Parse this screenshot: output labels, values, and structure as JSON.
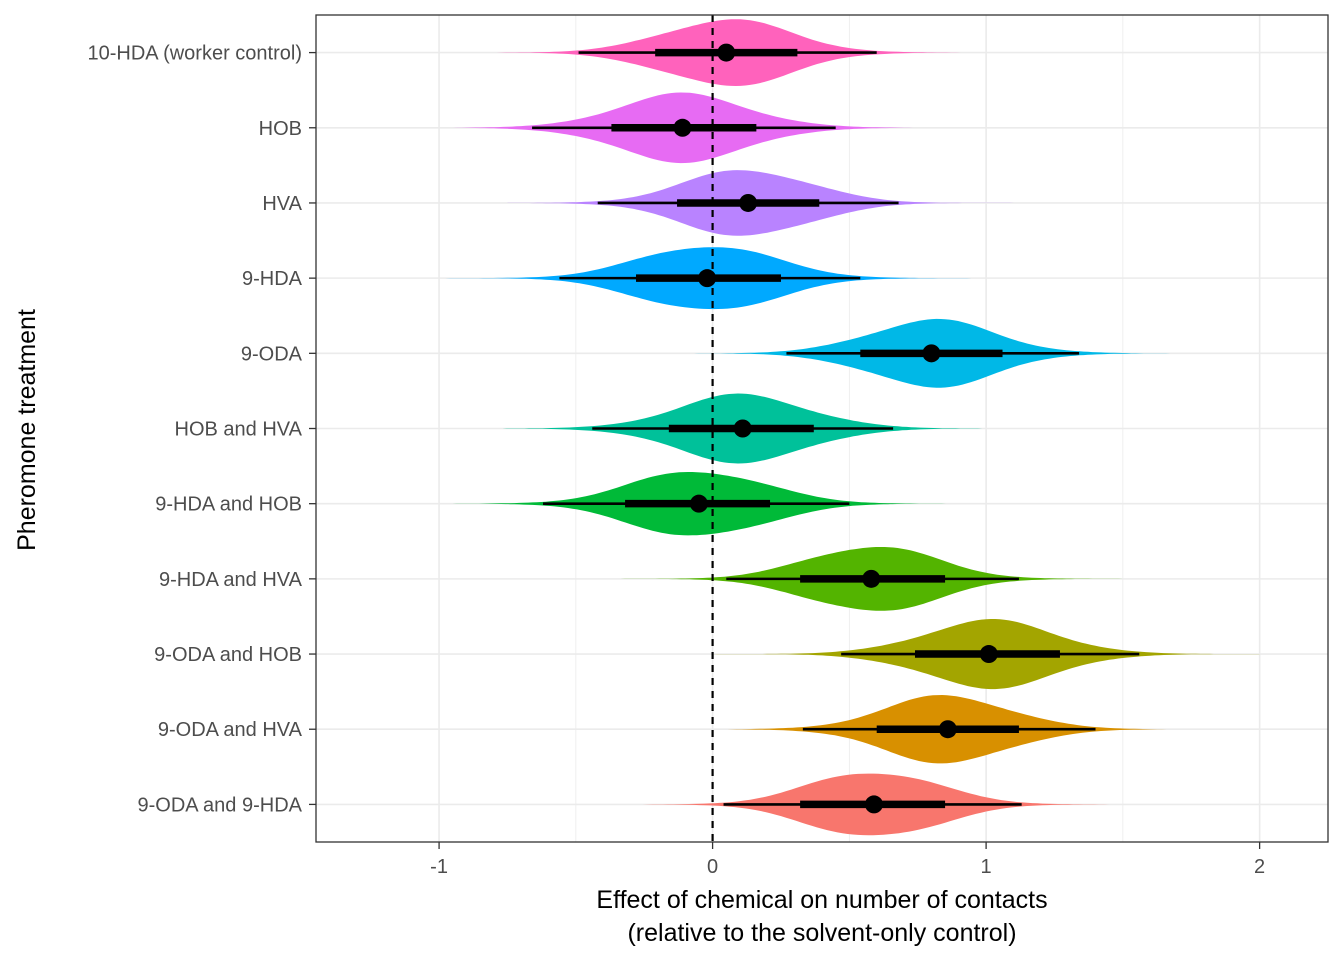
{
  "chart_data": {
    "type": "violin",
    "title": "",
    "xlabel_line1": "Effect of chemical on number of contacts",
    "xlabel_line2": "(relative to the solvent-only control)",
    "ylabel": "Pheromone treatment",
    "xlim": [
      -1.45,
      2.25
    ],
    "xticks": [
      -1,
      0,
      1,
      2
    ],
    "xtick_labels": [
      "-1",
      "0",
      "1",
      "2"
    ],
    "reference_line_x": 0,
    "grid": true,
    "legend": "none",
    "categories": [
      {
        "label": "10-HDA (worker control)",
        "median": 0.05,
        "inner": [
          -0.21,
          0.31
        ],
        "outer": [
          -0.49,
          0.6
        ],
        "sd": 0.23,
        "tail_range": [
          -1.0,
          1.1
        ],
        "color": "#FF62BC"
      },
      {
        "label": "HOB",
        "median": -0.11,
        "inner": [
          -0.37,
          0.16
        ],
        "outer": [
          -0.66,
          0.45
        ],
        "sd": 0.24,
        "tail_range": [
          -1.05,
          0.95
        ],
        "color": "#E76BF3"
      },
      {
        "label": "HVA",
        "median": 0.13,
        "inner": [
          -0.13,
          0.39
        ],
        "outer": [
          -0.42,
          0.68
        ],
        "sd": 0.23,
        "tail_range": [
          -0.75,
          1.15
        ],
        "color": "#B983FF"
      },
      {
        "label": "9-HDA",
        "median": -0.02,
        "inner": [
          -0.28,
          0.25
        ],
        "outer": [
          -0.56,
          0.54
        ],
        "sd": 0.24,
        "tail_range": [
          -1.1,
          1.0
        ],
        "color": "#00A9FF"
      },
      {
        "label": "9-ODA",
        "median": 0.8,
        "inner": [
          0.54,
          1.06
        ],
        "outer": [
          0.27,
          1.34
        ],
        "sd": 0.23,
        "tail_range": [
          -0.1,
          1.8
        ],
        "color": "#00B8E7"
      },
      {
        "label": "HOB and HVA",
        "median": 0.11,
        "inner": [
          -0.16,
          0.37
        ],
        "outer": [
          -0.44,
          0.66
        ],
        "sd": 0.24,
        "tail_range": [
          -0.85,
          1.1
        ],
        "color": "#00C19A"
      },
      {
        "label": "9-HDA and HOB",
        "median": -0.05,
        "inner": [
          -0.32,
          0.21
        ],
        "outer": [
          -0.62,
          0.5
        ],
        "sd": 0.24,
        "tail_range": [
          -1.0,
          0.95
        ],
        "color": "#00BA38"
      },
      {
        "label": "9-HDA and HVA",
        "median": 0.58,
        "inner": [
          0.32,
          0.85
        ],
        "outer": [
          0.05,
          1.12
        ],
        "sd": 0.23,
        "tail_range": [
          -0.4,
          1.5
        ],
        "color": "#53B400"
      },
      {
        "label": "9-ODA and HOB",
        "median": 1.01,
        "inner": [
          0.74,
          1.27
        ],
        "outer": [
          0.47,
          1.56
        ],
        "sd": 0.24,
        "tail_range": [
          0.0,
          2.0
        ],
        "color": "#A3A500"
      },
      {
        "label": "9-ODA and HVA",
        "median": 0.86,
        "inner": [
          0.6,
          1.12
        ],
        "outer": [
          0.33,
          1.4
        ],
        "sd": 0.23,
        "tail_range": [
          -0.1,
          1.95
        ],
        "color": "#D89000"
      },
      {
        "label": "9-ODA and 9-HDA",
        "median": 0.59,
        "inner": [
          0.32,
          0.85
        ],
        "outer": [
          0.04,
          1.13
        ],
        "sd": 0.23,
        "tail_range": [
          -0.5,
          1.75
        ],
        "color": "#F8766D"
      }
    ]
  }
}
